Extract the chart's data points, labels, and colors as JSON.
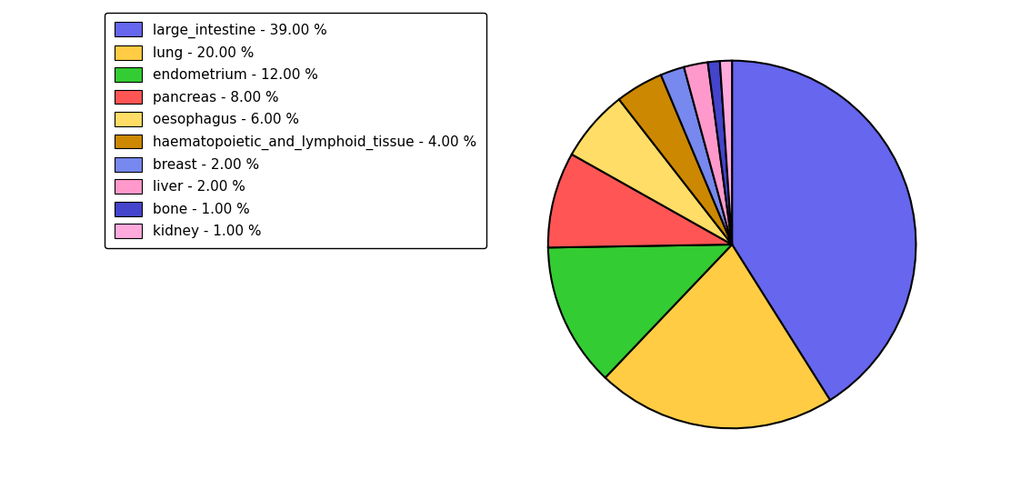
{
  "labels": [
    "large_intestine",
    "lung",
    "endometrium",
    "pancreas",
    "oesophagus",
    "haematopoietic_and_lymphoid_tissue",
    "breast",
    "liver",
    "bone",
    "kidney"
  ],
  "values": [
    39.0,
    20.0,
    12.0,
    8.0,
    6.0,
    4.0,
    2.0,
    2.0,
    1.0,
    1.0
  ],
  "colors": [
    "#6666ee",
    "#ffcc44",
    "#33cc33",
    "#ff5555",
    "#ffdd66",
    "#cc8800",
    "#7788ee",
    "#ff99cc",
    "#4444cc",
    "#ffaadd"
  ],
  "legend_labels": [
    "large_intestine - 39.00 %",
    "lung - 20.00 %",
    "endometrium - 12.00 %",
    "pancreas - 8.00 %",
    "oesophagus - 6.00 %",
    "haematopoietic_and_lymphoid_tissue - 4.00 %",
    "breast - 2.00 %",
    "liver - 2.00 %",
    "bone - 1.00 %",
    "kidney - 1.00 %"
  ],
  "startangle": 90,
  "figsize": [
    11.34,
    5.38
  ],
  "dpi": 100,
  "fontsize": 11
}
